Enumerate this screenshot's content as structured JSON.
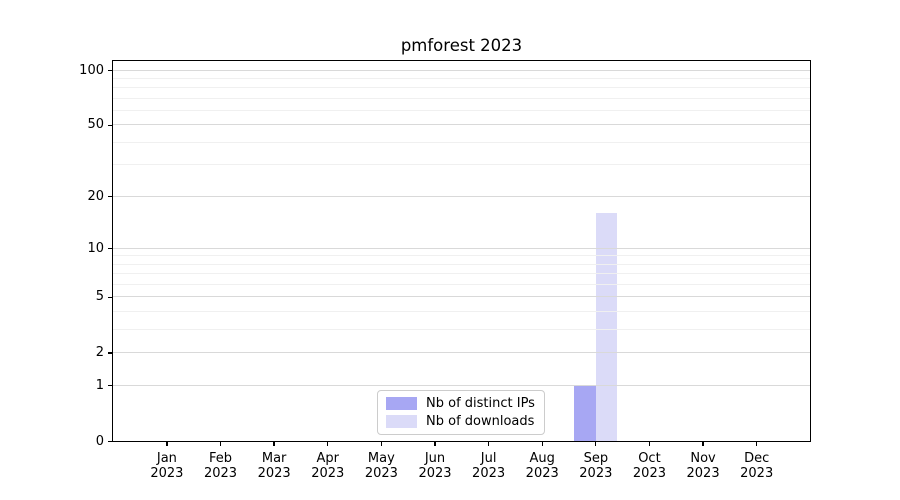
{
  "chart_data": {
    "type": "bar",
    "title": "pmforest 2023",
    "x_months": [
      "Jan",
      "Feb",
      "Mar",
      "Apr",
      "May",
      "Jun",
      "Jul",
      "Aug",
      "Sep",
      "Oct",
      "Nov",
      "Dec"
    ],
    "x_year": "2023",
    "series": [
      {
        "name": "Nb of distinct IPs",
        "color": "#a7a7f3",
        "values": [
          0,
          0,
          0,
          0,
          0,
          0,
          0,
          0,
          1,
          0,
          0,
          0
        ]
      },
      {
        "name": "Nb of downloads",
        "color": "#dbdbf8",
        "values": [
          0,
          0,
          0,
          0,
          0,
          0,
          0,
          0,
          16,
          0,
          0,
          0
        ]
      }
    ],
    "yscale": "log1p",
    "ylim": [
      0,
      112
    ],
    "yticks_major": [
      0,
      1,
      2,
      5,
      10,
      20,
      50,
      100
    ],
    "yticks_minor": [
      3,
      4,
      6,
      7,
      8,
      9,
      30,
      40,
      60,
      70,
      80,
      90
    ],
    "grid": {
      "enabled": true,
      "major_color": "#d9d9d9",
      "minor_color": "#f0f0f0"
    },
    "legend_loc": "lower center, inside plot",
    "axis_color": "#000000"
  }
}
